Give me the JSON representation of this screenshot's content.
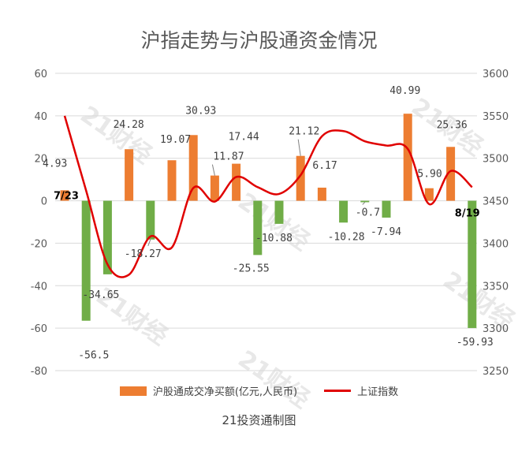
{
  "chart_data": {
    "type": "bar",
    "title": "沪指走势与沪股通资金情况",
    "source": "21投资通制图",
    "watermark": "21财经",
    "y_left": {
      "lim": [
        -80,
        60
      ],
      "ticks": [
        "60",
        "40",
        "20",
        "0",
        "-20",
        "-40",
        "-60",
        "-80"
      ]
    },
    "y_right": {
      "lim": [
        3250,
        3600
      ],
      "ticks": [
        "3600",
        "3550",
        "3500",
        "3450",
        "3400",
        "3350",
        "3300",
        "3250"
      ]
    },
    "x_labels": {
      "first": "7/23",
      "last": "8/19"
    },
    "series": [
      {
        "name": "沪股通成交净买额(亿元,人民币)",
        "kind": "bar",
        "values": [
          4.93,
          -56.5,
          -34.65,
          24.28,
          -18.27,
          19.07,
          30.93,
          11.87,
          17.44,
          -25.55,
          -10.88,
          21.12,
          6.17,
          -10.28,
          -0.7,
          -7.94,
          40.99,
          5.9,
          25.36,
          -59.93
        ],
        "labels": [
          "4.93",
          "-56.5",
          "-34.65",
          "24.28",
          "-18.27",
          "19.07",
          "30.93",
          "11.87",
          "17.44",
          "-25.55",
          "-10.88",
          "21.12",
          "6.17",
          "-10.28",
          "-0.7",
          "-7.94",
          "40.99",
          "5.90",
          "25.36",
          "-59.93"
        ]
      },
      {
        "name": "上证指数",
        "kind": "line",
        "values": [
          3550,
          3462,
          3375,
          3363,
          3408,
          3395,
          3465,
          3449,
          3478,
          3466,
          3458,
          3480,
          3526,
          3532,
          3520,
          3515,
          3511,
          3446,
          3485,
          3466
        ]
      }
    ],
    "colors": {
      "positive": "#ED7D31",
      "negative": "#70AD47",
      "line": "#E00000",
      "grid": "#D9D9D9"
    },
    "legend_placement": "bottom",
    "grid": true
  }
}
